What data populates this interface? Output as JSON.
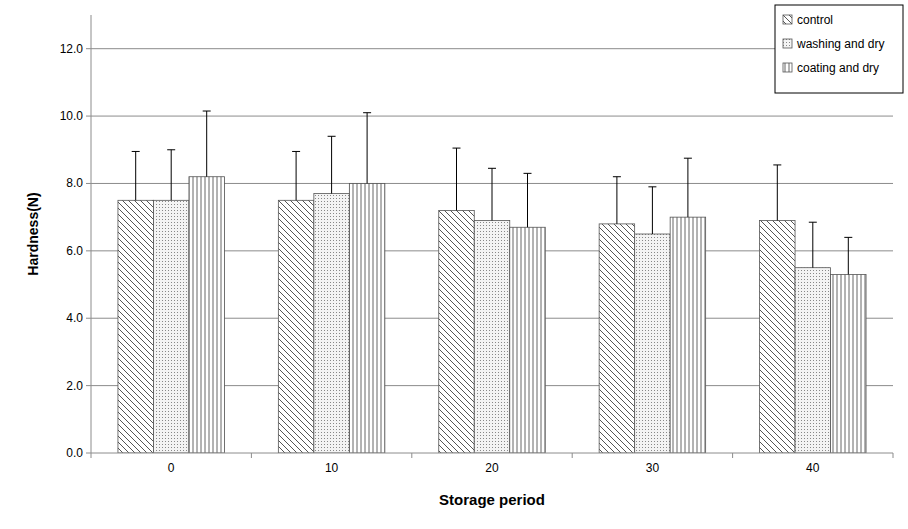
{
  "chart_data": {
    "type": "bar",
    "x_label": "Storage period",
    "y_label": "Hardness(N)",
    "categories": [
      "0",
      "10",
      "20",
      "30",
      "40"
    ],
    "series": [
      {
        "name": "control",
        "color": "#555555",
        "values": [
          7.5,
          7.5,
          7.2,
          6.8,
          6.9
        ],
        "errors": [
          1.45,
          1.45,
          1.85,
          1.4,
          1.65
        ]
      },
      {
        "name": "washing and dry",
        "color": "#888888",
        "values": [
          7.5,
          7.7,
          6.9,
          6.5,
          5.5
        ],
        "errors": [
          1.5,
          1.7,
          1.55,
          1.4,
          1.35
        ]
      },
      {
        "name": "coating and dry",
        "color": "#666666",
        "values": [
          8.2,
          8.0,
          6.7,
          7.0,
          5.3
        ],
        "errors": [
          1.95,
          2.1,
          1.6,
          1.75,
          1.1
        ]
      }
    ],
    "ylim": [
      0,
      13
    ],
    "yticks": [
      {
        "value": 0,
        "label": "0.0"
      },
      {
        "value": 2,
        "label": "2.0"
      },
      {
        "value": 4,
        "label": "4.0"
      },
      {
        "value": 6,
        "label": "6.0"
      },
      {
        "value": 8,
        "label": "8.0"
      },
      {
        "value": 10,
        "label": "10.0"
      },
      {
        "value": 12,
        "label": "12.0"
      }
    ],
    "grid": true,
    "legend": "top-right"
  }
}
